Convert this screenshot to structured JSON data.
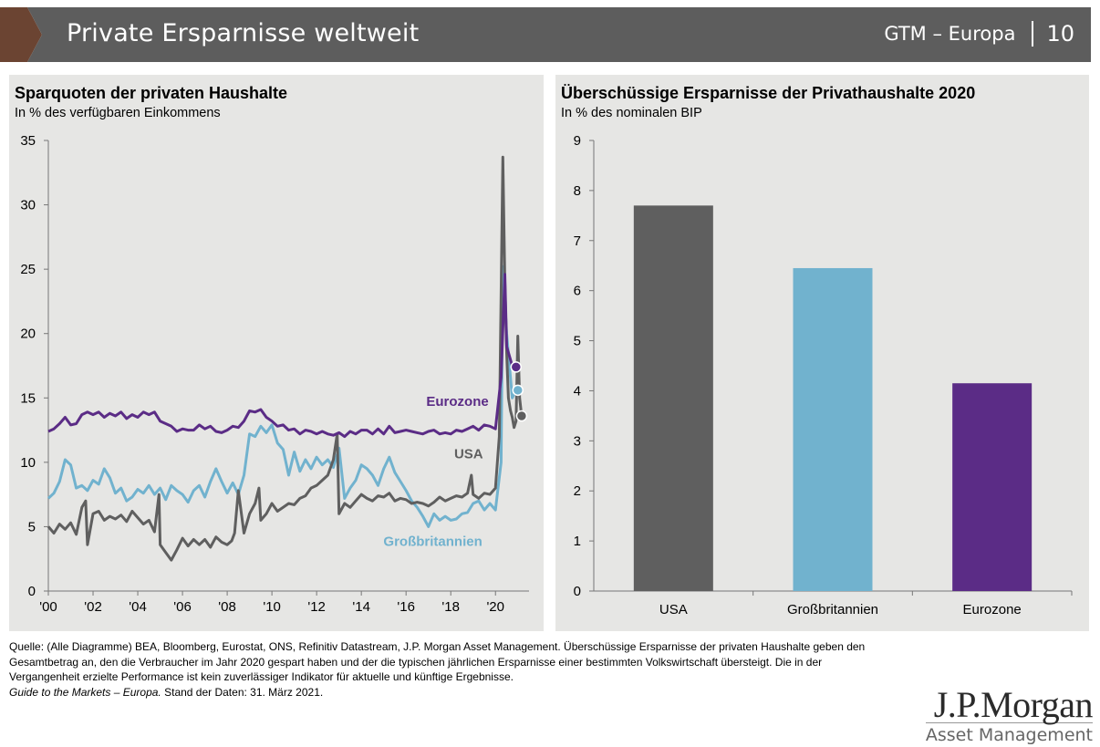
{
  "header": {
    "title": "Private Ersparnisse weltweit",
    "section": "GTM – Europa",
    "page_number": "10",
    "colors": {
      "bar": "#5d5d5d",
      "chevron": "#6b4432"
    }
  },
  "left_chart": {
    "title": "Sparquoten der privaten Haushalte",
    "subtitle": "In % des verfügbaren Einkommens"
  },
  "right_chart": {
    "title": "Überschüssige Ersparnisse der Privathaushalte 2020",
    "subtitle": "In % des nominalen BIP"
  },
  "footer": {
    "source_text": "Quelle: (Alle Diagramme) BEA, Bloomberg, Eurostat, ONS, Refinitiv Datastream, J.P. Morgan Asset Management. Überschüssige Ersparnisse der privaten Haushalte geben den Gesamtbetrag an, den die Verbraucher im Jahr 2020 gespart haben und der die typischen jährlichen Ersparnisse einer bestimmten Volkswirtschaft übersteigt. Die in der Vergangenheit erzielte Performance ist kein zuverlässiger Indikator für aktuelle und künftige Ergebnisse.",
    "guide_text": "Guide to the Markets – Europa.",
    "date_text": " Stand der Daten: 31. März 2021."
  },
  "logo": {
    "line1": "J.P.Morgan",
    "line2": "Asset Management"
  },
  "chart_data": [
    {
      "type": "line",
      "title": "Sparquoten der privaten Haushalte",
      "subtitle": "In % des verfügbaren Einkommens",
      "ylim": [
        0,
        35
      ],
      "yticks": [
        0,
        5,
        10,
        15,
        20,
        25,
        30,
        35
      ],
      "xlim": [
        2000,
        2021.5
      ],
      "xticks": [
        2000,
        2002,
        2004,
        2006,
        2008,
        2010,
        2012,
        2014,
        2016,
        2018,
        2020
      ],
      "xtick_labels": [
        "'00",
        "'02",
        "'04",
        "'06",
        "'08",
        "'10",
        "'12",
        "'14",
        "'16",
        "'18",
        "'20"
      ],
      "grid": false,
      "series": [
        {
          "name": "USA",
          "color": "#5f5f5f",
          "x": [
            2000,
            2000.25,
            2000.5,
            2000.75,
            2001,
            2001.25,
            2001.5,
            2001.67,
            2001.75,
            2002,
            2002.25,
            2002.5,
            2002.75,
            2003,
            2003.25,
            2003.5,
            2003.75,
            2004,
            2004.25,
            2004.5,
            2004.75,
            2004.95,
            2005,
            2005.25,
            2005.5,
            2005.75,
            2006,
            2006.25,
            2006.5,
            2006.75,
            2007,
            2007.25,
            2007.5,
            2007.75,
            2008,
            2008.2,
            2008.33,
            2008.5,
            2008.75,
            2009,
            2009.25,
            2009.42,
            2009.5,
            2009.75,
            2010,
            2010.25,
            2010.5,
            2010.75,
            2011,
            2011.25,
            2011.5,
            2011.75,
            2012,
            2012.25,
            2012.5,
            2012.75,
            2012.92,
            2013,
            2013.25,
            2013.5,
            2013.75,
            2014,
            2014.25,
            2014.5,
            2014.75,
            2015,
            2015.25,
            2015.5,
            2015.75,
            2016,
            2016.25,
            2016.5,
            2016.75,
            2017,
            2017.25,
            2017.5,
            2017.75,
            2018,
            2018.25,
            2018.5,
            2018.75,
            2018.92,
            2019,
            2019.25,
            2019.5,
            2019.75,
            2020,
            2020.17,
            2020.33,
            2020.42,
            2020.5,
            2020.58,
            2020.67,
            2020.75,
            2020.83,
            2020.92,
            2021,
            2021.08,
            2021.17
          ],
          "y": [
            5.0,
            4.5,
            5.2,
            4.8,
            5.3,
            4.4,
            6.5,
            7.0,
            3.6,
            6.0,
            6.2,
            5.5,
            5.8,
            5.6,
            5.9,
            5.4,
            6.2,
            5.7,
            5.2,
            5.5,
            4.6,
            7.5,
            3.6,
            3.0,
            2.4,
            3.2,
            4.1,
            3.5,
            4.0,
            3.6,
            4.0,
            3.4,
            4.2,
            3.8,
            3.6,
            3.9,
            4.5,
            7.8,
            4.5,
            6.0,
            6.8,
            8.0,
            5.5,
            6.0,
            6.8,
            6.2,
            6.5,
            6.8,
            6.7,
            7.2,
            7.4,
            8.0,
            8.2,
            8.6,
            9.0,
            10.2,
            12.2,
            6.0,
            6.8,
            6.5,
            7.0,
            7.5,
            7.2,
            7.0,
            7.4,
            7.3,
            7.6,
            7.0,
            7.2,
            7.1,
            6.8,
            6.9,
            6.8,
            6.6,
            6.9,
            7.3,
            7.0,
            7.2,
            7.4,
            7.3,
            7.6,
            9.0,
            7.5,
            7.2,
            7.6,
            7.5,
            8.0,
            12.0,
            33.7,
            24.0,
            18.5,
            15.0,
            14.0,
            13.5,
            12.7,
            13.2,
            19.8,
            15.0,
            13.6
          ]
        },
        {
          "name": "Eurozone",
          "color": "#5b2c86",
          "x": [
            2000,
            2000.25,
            2000.5,
            2000.75,
            2001,
            2001.25,
            2001.5,
            2001.75,
            2002,
            2002.25,
            2002.5,
            2002.75,
            2003,
            2003.25,
            2003.5,
            2003.75,
            2004,
            2004.25,
            2004.5,
            2004.75,
            2005,
            2005.25,
            2005.5,
            2005.75,
            2006,
            2006.25,
            2006.5,
            2006.75,
            2007,
            2007.25,
            2007.5,
            2007.75,
            2008,
            2008.25,
            2008.5,
            2008.75,
            2009,
            2009.25,
            2009.5,
            2009.75,
            2010,
            2010.25,
            2010.5,
            2010.75,
            2011,
            2011.25,
            2011.5,
            2011.75,
            2012,
            2012.25,
            2012.5,
            2012.75,
            2013,
            2013.25,
            2013.5,
            2013.75,
            2014,
            2014.25,
            2014.5,
            2014.75,
            2015,
            2015.25,
            2015.5,
            2015.75,
            2016,
            2016.25,
            2016.5,
            2016.75,
            2017,
            2017.25,
            2017.5,
            2017.75,
            2018,
            2018.25,
            2018.5,
            2018.75,
            2019,
            2019.25,
            2019.5,
            2019.75,
            2020,
            2020.25,
            2020.42,
            2020.5,
            2020.75,
            2020.92
          ],
          "y": [
            12.4,
            12.6,
            13.0,
            13.5,
            12.9,
            13.0,
            13.7,
            13.9,
            13.7,
            13.9,
            13.5,
            13.8,
            13.6,
            13.9,
            13.4,
            13.7,
            13.5,
            13.9,
            13.7,
            13.9,
            13.2,
            13.0,
            12.8,
            12.4,
            12.6,
            12.5,
            12.5,
            12.9,
            12.6,
            12.8,
            12.4,
            12.3,
            12.5,
            12.8,
            12.7,
            13.2,
            14.0,
            13.9,
            14.1,
            13.5,
            13.2,
            12.8,
            12.9,
            12.5,
            12.6,
            12.2,
            12.5,
            12.4,
            12.2,
            12.4,
            12.2,
            12.1,
            12.3,
            12.0,
            12.4,
            12.2,
            12.5,
            12.5,
            12.2,
            12.6,
            12.2,
            12.8,
            12.3,
            12.4,
            12.5,
            12.4,
            12.3,
            12.2,
            12.4,
            12.5,
            12.2,
            12.3,
            12.2,
            12.5,
            12.4,
            12.6,
            12.8,
            12.5,
            12.9,
            12.8,
            12.6,
            16.6,
            24.6,
            19.0,
            17.5,
            17.4
          ]
        },
        {
          "name": "Großbritannien",
          "color": "#71b2ce",
          "x": [
            2000,
            2000.25,
            2000.5,
            2000.75,
            2001,
            2001.25,
            2001.5,
            2001.75,
            2002,
            2002.25,
            2002.5,
            2002.75,
            2003,
            2003.25,
            2003.5,
            2003.75,
            2004,
            2004.25,
            2004.5,
            2004.75,
            2005,
            2005.25,
            2005.5,
            2005.75,
            2006,
            2006.25,
            2006.5,
            2006.75,
            2007,
            2007.25,
            2007.5,
            2007.75,
            2008,
            2008.25,
            2008.5,
            2008.75,
            2009,
            2009.25,
            2009.5,
            2009.75,
            2010,
            2010.25,
            2010.5,
            2010.75,
            2011,
            2011.25,
            2011.5,
            2011.75,
            2012,
            2012.25,
            2012.5,
            2012.75,
            2013,
            2013.25,
            2013.5,
            2013.75,
            2014,
            2014.25,
            2014.5,
            2014.75,
            2015,
            2015.25,
            2015.5,
            2015.75,
            2016,
            2016.25,
            2016.5,
            2016.75,
            2017,
            2017.25,
            2017.5,
            2017.75,
            2018,
            2018.25,
            2018.5,
            2018.75,
            2019,
            2019.25,
            2019.5,
            2019.75,
            2020,
            2020.25,
            2020.33,
            2020.5,
            2020.75,
            2020.92
          ],
          "y": [
            7.2,
            7.6,
            8.5,
            10.2,
            9.8,
            8.0,
            8.2,
            7.8,
            8.6,
            8.3,
            9.5,
            8.8,
            7.6,
            8.0,
            7.0,
            7.3,
            7.9,
            7.6,
            8.2,
            7.5,
            8.0,
            7.1,
            8.2,
            7.8,
            7.5,
            6.9,
            7.8,
            8.2,
            7.3,
            8.5,
            9.5,
            8.5,
            7.6,
            8.4,
            7.5,
            9.0,
            12.2,
            12.0,
            12.8,
            12.3,
            12.9,
            11.5,
            11.0,
            9.0,
            10.8,
            9.3,
            10.2,
            9.5,
            10.4,
            9.8,
            10.2,
            9.6,
            11.1,
            7.2,
            8.0,
            8.6,
            9.8,
            9.5,
            9.0,
            8.2,
            9.5,
            10.4,
            9.2,
            8.5,
            7.8,
            7.0,
            6.5,
            5.8,
            5.0,
            6.0,
            5.5,
            5.8,
            5.5,
            5.6,
            6.0,
            6.1,
            6.8,
            7.0,
            6.3,
            6.8,
            6.3,
            10.0,
            25.2,
            20.0,
            15.0,
            15.6
          ]
        }
      ],
      "annotations": [
        {
          "text": "Eurozone",
          "x": 2018.3,
          "y": 14.4,
          "color": "#5b2c86"
        },
        {
          "text": "USA",
          "x": 2018.8,
          "y": 10.3,
          "color": "#5f5f5f"
        },
        {
          "text": "Großbritannien",
          "x": 2017.2,
          "y": 3.5,
          "color": "#71b2ce"
        }
      ],
      "end_markers": [
        {
          "series": "Eurozone",
          "x": 2020.92,
          "y": 17.4
        },
        {
          "series": "Großbritannien",
          "x": 2021.0,
          "y": 15.6
        },
        {
          "series": "USA",
          "x": 2021.17,
          "y": 13.6
        }
      ]
    },
    {
      "type": "bar",
      "title": "Überschüssige Ersparnisse der Privathaushalte 2020",
      "subtitle": "In % des nominalen BIP",
      "categories": [
        "USA",
        "Großbritannien",
        "Eurozone"
      ],
      "values": [
        7.7,
        6.45,
        4.15
      ],
      "colors": [
        "#5f5f5f",
        "#71b2ce",
        "#5b2c86"
      ],
      "ylim": [
        0,
        9
      ],
      "yticks": [
        0,
        1,
        2,
        3,
        4,
        5,
        6,
        7,
        8,
        9
      ],
      "grid": false,
      "legend": "none"
    }
  ]
}
